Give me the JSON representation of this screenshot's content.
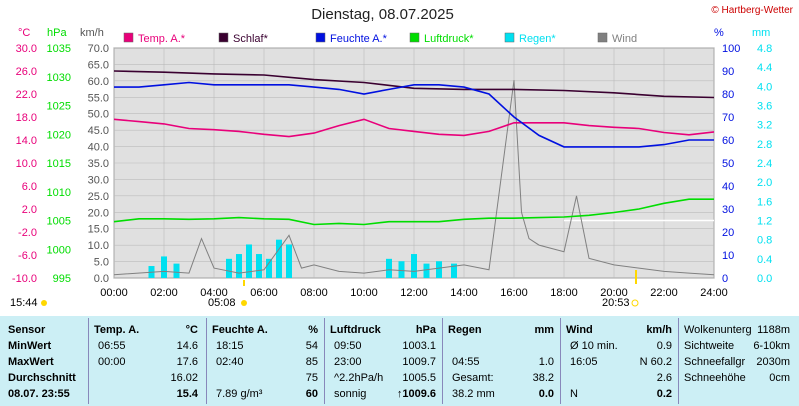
{
  "title": "Dienstag, 08.07.2025",
  "copyright": "© Hartberg-Wetter",
  "colors": {
    "temp": "#e8007a",
    "schlaf": "#3a0030",
    "feuchte": "#0010e0",
    "luftdruck": "#00dd00",
    "regen": "#00e0f0",
    "wind": "#808080",
    "bg": "#e0e0e0"
  },
  "axes": {
    "temp_unit": "°C",
    "hpa_unit": "hPa",
    "kmh_unit": "km/h",
    "pct_unit": "%",
    "mm_unit": "mm",
    "temp_ticks": [
      "30.0",
      "26.0",
      "22.0",
      "18.0",
      "14.0",
      "10.0",
      "6.0",
      "2.0",
      "-2.0",
      "-6.0",
      "-10.0"
    ],
    "hpa_ticks": [
      "1035",
      "1030",
      "1025",
      "1020",
      "1015",
      "1010",
      "1005",
      "1000",
      "995"
    ],
    "kmh_ticks": [
      "70.0",
      "65.0",
      "60.0",
      "55.0",
      "50.0",
      "45.0",
      "40.0",
      "35.0",
      "30.0",
      "25.0",
      "20.0",
      "15.0",
      "10.0",
      "5.0",
      "0.0"
    ],
    "pct_ticks": [
      "100",
      "90",
      "80",
      "70",
      "60",
      "50",
      "40",
      "30",
      "20",
      "10",
      "0"
    ],
    "mm_ticks": [
      "4.8",
      "4.4",
      "4.0",
      "3.6",
      "3.2",
      "2.8",
      "2.4",
      "2.0",
      "1.6",
      "1.2",
      "0.8",
      "0.4",
      "0.0"
    ],
    "x_ticks": [
      "00:00",
      "02:00",
      "04:00",
      "06:00",
      "08:00",
      "10:00",
      "12:00",
      "14:00",
      "16:00",
      "18:00",
      "20:00",
      "22:00",
      "24:00"
    ]
  },
  "sun": {
    "moonrise": "15:44",
    "sunrise": "05:08",
    "sunset": "20:53"
  },
  "chart_data": {
    "type": "line",
    "title": "Dienstag, 08.07.2025",
    "x_unit": "hours",
    "xlim": [
      0,
      24
    ],
    "series": [
      {
        "name": "Temp. A.*",
        "unit": "°C",
        "ylim": [
          -10,
          30
        ],
        "points": [
          [
            0,
            17.6
          ],
          [
            1,
            17.2
          ],
          [
            2,
            16.8
          ],
          [
            3,
            16.0
          ],
          [
            4,
            15.8
          ],
          [
            5,
            15.5
          ],
          [
            6,
            15.0
          ],
          [
            7,
            14.6
          ],
          [
            8,
            15.2
          ],
          [
            9,
            16.5
          ],
          [
            10,
            17.6
          ],
          [
            11,
            16.0
          ],
          [
            12,
            15.5
          ],
          [
            13,
            15.0
          ],
          [
            14,
            14.8
          ],
          [
            15,
            15.5
          ],
          [
            16,
            17.0
          ],
          [
            17,
            17.0
          ],
          [
            18,
            17.0
          ],
          [
            19,
            16.5
          ],
          [
            20,
            16.2
          ],
          [
            21,
            16.0
          ],
          [
            22,
            15.3
          ],
          [
            23,
            14.9
          ],
          [
            24,
            15.4
          ]
        ]
      },
      {
        "name": "Schlaf*",
        "unit": "°C",
        "ylim": [
          -10,
          30
        ],
        "points": [
          [
            0,
            26.0
          ],
          [
            2,
            25.8
          ],
          [
            4,
            25.5
          ],
          [
            6,
            25.3
          ],
          [
            8,
            24.5
          ],
          [
            10,
            24.0
          ],
          [
            12,
            23.0
          ],
          [
            14,
            22.8
          ],
          [
            16,
            22.8
          ],
          [
            18,
            22.6
          ],
          [
            20,
            22.2
          ],
          [
            22,
            21.6
          ],
          [
            24,
            21.4
          ]
        ]
      },
      {
        "name": "Feuchte A.*",
        "unit": "%",
        "ylim": [
          0,
          100
        ],
        "points": [
          [
            0,
            83
          ],
          [
            1,
            83
          ],
          [
            2,
            84
          ],
          [
            3,
            85
          ],
          [
            4,
            84
          ],
          [
            5,
            84
          ],
          [
            6,
            84
          ],
          [
            7,
            84
          ],
          [
            8,
            83
          ],
          [
            9,
            82
          ],
          [
            10,
            80
          ],
          [
            11,
            82
          ],
          [
            12,
            84
          ],
          [
            13,
            84
          ],
          [
            14,
            83
          ],
          [
            15,
            80
          ],
          [
            16,
            70
          ],
          [
            17,
            62
          ],
          [
            18,
            57
          ],
          [
            19,
            57
          ],
          [
            20,
            57
          ],
          [
            21,
            57
          ],
          [
            22,
            58
          ],
          [
            23,
            60
          ],
          [
            24,
            60
          ]
        ]
      },
      {
        "name": "Luftdruck*",
        "unit": "hPa",
        "ylim": [
          995,
          1035
        ],
        "points": [
          [
            0,
            1004.8
          ],
          [
            1,
            1005.3
          ],
          [
            2,
            1005.3
          ],
          [
            3,
            1005.2
          ],
          [
            4,
            1005.3
          ],
          [
            5,
            1005.5
          ],
          [
            6,
            1005.3
          ],
          [
            7,
            1005.2
          ],
          [
            8,
            1004.3
          ],
          [
            9,
            1004.5
          ],
          [
            10,
            1004.3
          ],
          [
            11,
            1004.8
          ],
          [
            12,
            1004.8
          ],
          [
            13,
            1004.8
          ],
          [
            14,
            1005.2
          ],
          [
            15,
            1005.4
          ],
          [
            16,
            1005.4
          ],
          [
            17,
            1005.5
          ],
          [
            18,
            1005.6
          ],
          [
            19,
            1005.9
          ],
          [
            20,
            1006.4
          ],
          [
            21,
            1007.0
          ],
          [
            22,
            1008.0
          ],
          [
            23,
            1008.7
          ],
          [
            24,
            1008.7
          ]
        ]
      },
      {
        "name": "Regen*",
        "unit": "mm",
        "ylim": [
          0,
          4.8
        ],
        "type": "bar",
        "points": [
          [
            1.5,
            0.25
          ],
          [
            2.0,
            0.45
          ],
          [
            2.5,
            0.3
          ],
          [
            4.6,
            0.4
          ],
          [
            5.0,
            0.5
          ],
          [
            5.4,
            0.7
          ],
          [
            5.8,
            0.5
          ],
          [
            6.2,
            0.4
          ],
          [
            6.6,
            0.8
          ],
          [
            7.0,
            0.7
          ],
          [
            11.0,
            0.4
          ],
          [
            11.5,
            0.35
          ],
          [
            12.0,
            0.5
          ],
          [
            12.5,
            0.3
          ],
          [
            13.0,
            0.35
          ],
          [
            13.6,
            0.3
          ]
        ]
      },
      {
        "name": "Wind",
        "unit": "km/h",
        "ylim": [
          0,
          70
        ],
        "points": [
          [
            0,
            1.0
          ],
          [
            2,
            2.0
          ],
          [
            3,
            1.5
          ],
          [
            3.5,
            12.0
          ],
          [
            4,
            3.0
          ],
          [
            5,
            1.5
          ],
          [
            6,
            2.5
          ],
          [
            7,
            13.0
          ],
          [
            7.5,
            3.0
          ],
          [
            8,
            4.0
          ],
          [
            9,
            2.0
          ],
          [
            10,
            1.5
          ],
          [
            11,
            2.5
          ],
          [
            12,
            2.0
          ],
          [
            13,
            3.0
          ],
          [
            14,
            4.0
          ],
          [
            15,
            2.5
          ],
          [
            16,
            60.2
          ],
          [
            16.3,
            20.0
          ],
          [
            16.6,
            12.0
          ],
          [
            17,
            10.0
          ],
          [
            18,
            8.0
          ],
          [
            18.5,
            25.0
          ],
          [
            19,
            6.0
          ],
          [
            20,
            4.0
          ],
          [
            21,
            3.0
          ],
          [
            22,
            2.0
          ],
          [
            23,
            1.5
          ],
          [
            24,
            1.0
          ]
        ]
      }
    ]
  },
  "table": {
    "sensor": {
      "header": "Sensor",
      "rows": [
        "MinWert",
        "MaxWert",
        "Durchschnitt",
        "08.07. 23:55"
      ]
    },
    "temp": {
      "header": "Temp. A.",
      "unit": "°C",
      "rows": [
        [
          "06:55",
          "14.6"
        ],
        [
          "00:00",
          "17.6"
        ],
        [
          "",
          "16.02"
        ],
        [
          "",
          "15.4"
        ]
      ]
    },
    "feuchte": {
      "header": "Feuchte A.",
      "unit": "%",
      "rows": [
        [
          "18:15",
          "54"
        ],
        [
          "02:40",
          "85"
        ],
        [
          "",
          "75"
        ],
        [
          "7.89 g/m³",
          "60"
        ]
      ]
    },
    "luft": {
      "header": "Luftdruck",
      "unit": "hPa",
      "rows": [
        [
          "09:50",
          "1003.1"
        ],
        [
          "23:00",
          "1009.7"
        ],
        [
          "^2.2hPa/h",
          "1005.5"
        ],
        [
          "sonnig",
          "↑1009.6"
        ]
      ]
    },
    "regen": {
      "header": "Regen",
      "unit": "mm",
      "rows": [
        [
          "",
          ""
        ],
        [
          "04:55",
          "1.0"
        ],
        [
          "Gesamt:",
          "38.2"
        ],
        [
          "38.2 mm",
          "0.0"
        ]
      ]
    },
    "wind": {
      "header": "Wind",
      "unit": "km/h",
      "rows": [
        [
          "Ø 10 min.",
          "0.9"
        ],
        [
          "16:05",
          "N 60.2"
        ],
        [
          "",
          "2.6"
        ],
        [
          "N",
          "0.2"
        ]
      ]
    },
    "extra": {
      "rows": [
        [
          "Wolkenunterg",
          "1188m"
        ],
        [
          "Sichtweite",
          "6-10km"
        ],
        [
          "Schneefallgr",
          "2030m"
        ],
        [
          "Schneehöhe",
          "0cm"
        ]
      ]
    }
  }
}
